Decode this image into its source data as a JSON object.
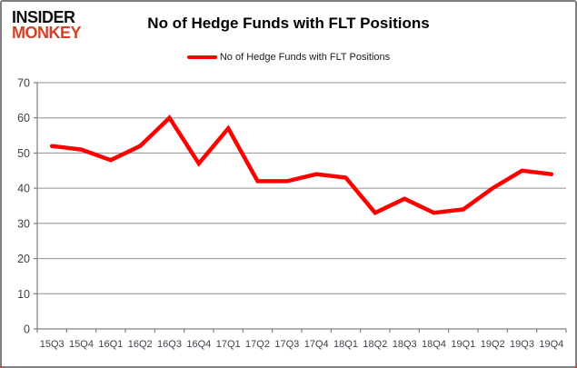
{
  "header": {
    "logo": {
      "line1": "INSIDER",
      "line2": "MONKEY"
    },
    "title": "No of Hedge Funds with FLT Positions"
  },
  "legend": {
    "label": "No of Hedge Funds with FLT Positions",
    "swatch_color": "#ff0000"
  },
  "chart_data": {
    "type": "line",
    "title": "No of Hedge Funds with FLT Positions",
    "categories": [
      "15Q3",
      "15Q4",
      "16Q1",
      "16Q2",
      "16Q3",
      "16Q4",
      "17Q1",
      "17Q2",
      "17Q3",
      "17Q4",
      "18Q1",
      "18Q2",
      "18Q3",
      "18Q4",
      "19Q1",
      "19Q2",
      "19Q3",
      "19Q4"
    ],
    "series": [
      {
        "name": "No of Hedge Funds with FLT Positions",
        "color": "#ff0000",
        "values": [
          52,
          51,
          48,
          52,
          60,
          47,
          57,
          42,
          42,
          44,
          43,
          33,
          37,
          33,
          34,
          40,
          45,
          44
        ]
      }
    ],
    "xlabel": "",
    "ylabel": "",
    "ylim": [
      0,
      70
    ],
    "yticks": [
      0,
      10,
      20,
      30,
      40,
      50,
      60,
      70
    ],
    "grid": "horizontal",
    "legend_position": "top-center"
  },
  "colors": {
    "line": "#ff0000",
    "gridline": "#909090",
    "axis": "#7f7f7f",
    "tick_label": "#3f3f4a",
    "logo_black": "#111111",
    "logo_red": "#d2422b",
    "frame_border": "#7f7f7f",
    "shadow_red": "#e4281a"
  }
}
